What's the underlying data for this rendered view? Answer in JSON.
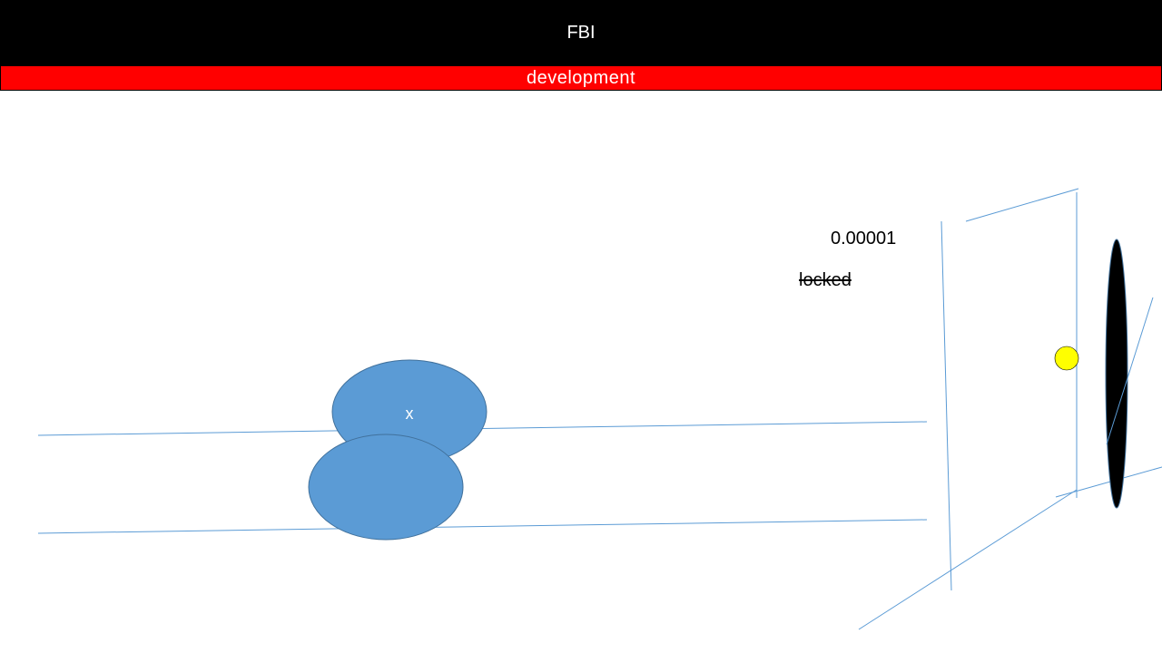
{
  "header": {
    "title": "FBI",
    "background": "#000000",
    "text_color": "#ffffff"
  },
  "environment_banner": {
    "label": "development",
    "background": "#ff0000",
    "text_color": "#ffffff"
  },
  "diagram": {
    "value_label": "0.00001",
    "status_label": "locked",
    "status_strikethrough": true,
    "node_label": "x",
    "colors": {
      "line": "#5b9bd5",
      "node_fill": "#5b9bd5",
      "node_stroke": "#41719c",
      "node_text": "#ffffff",
      "marker_fill": "#ffff00",
      "disc_fill": "#000000"
    },
    "shapes": [
      "rails",
      "ellipse-nodes",
      "yellow-circle",
      "black-disc",
      "frame-lines"
    ]
  }
}
